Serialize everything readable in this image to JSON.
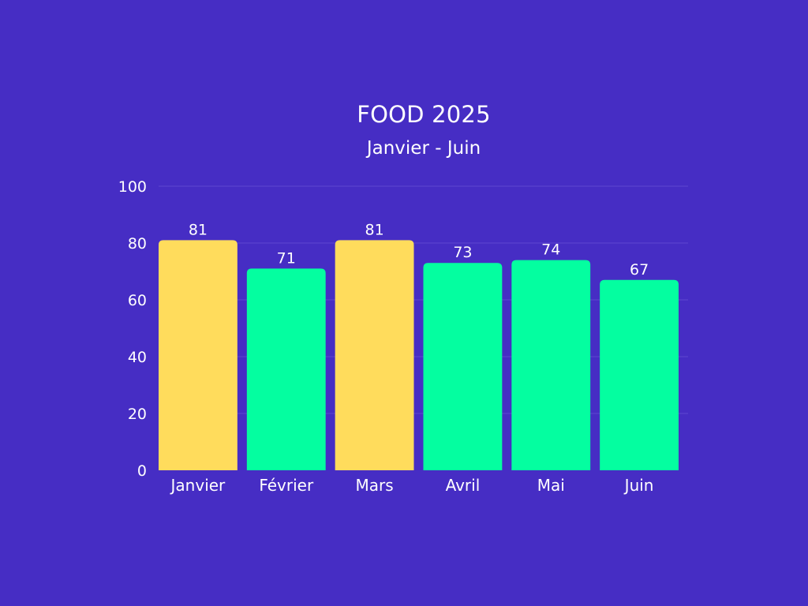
{
  "chart_data": {
    "type": "bar",
    "title": "FOOD 2025",
    "subtitle": "Janvier - Juin",
    "categories": [
      "Janvier",
      "Février",
      "Mars",
      "Avril",
      "Mai",
      "Juin"
    ],
    "values": [
      81,
      71,
      81,
      73,
      74,
      67
    ],
    "highlighted": [
      true,
      false,
      true,
      false,
      false,
      false
    ],
    "ylim": [
      0,
      100
    ],
    "yticks": [
      0,
      20,
      40,
      60,
      80,
      100
    ],
    "grid": true,
    "show_data_labels": true,
    "colors": {
      "background": "#462dc4",
      "bar": "#04fea0",
      "bar_highlight": "#ffdc5c",
      "grid": "#5d48d0",
      "text": "#ffffff"
    }
  }
}
